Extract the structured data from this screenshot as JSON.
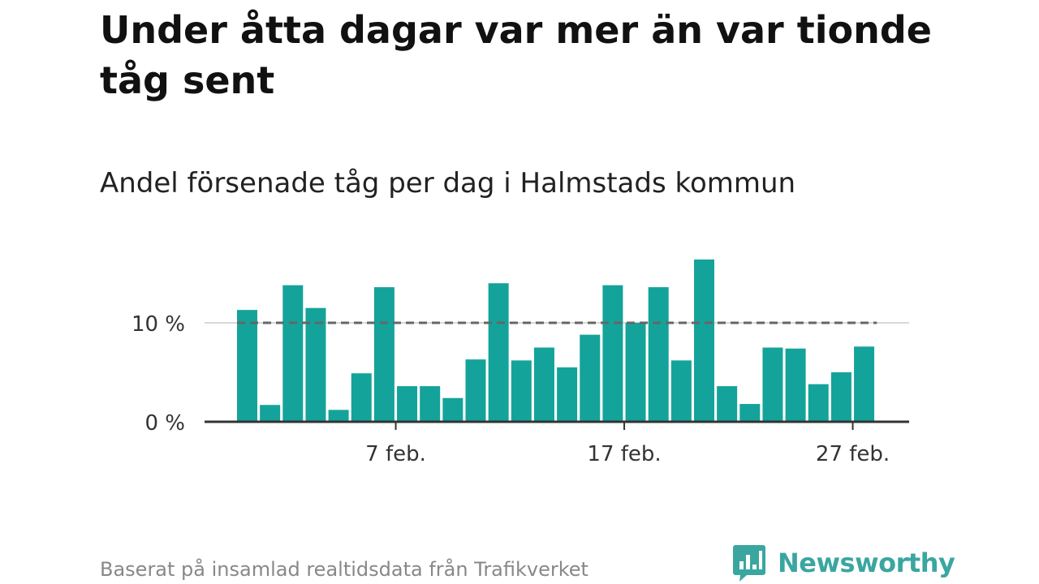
{
  "title": "Under åtta dagar var mer än var tionde tåg sent",
  "subtitle": "Andel försenade tåg per dag i Halmstads kommun",
  "source": "Baserat på insamlad realtidsdata från Trafikverket",
  "logo": {
    "text": "Newsworthy",
    "icon": "bar-chart-speech-icon"
  },
  "colors": {
    "bar": "#14a39a",
    "reference_line": "#666666",
    "axis": "#333333",
    "logo": "#3aa6a0"
  },
  "chart_data": {
    "type": "bar",
    "title": "Andel försenade tåg per dag i Halmstads kommun",
    "xlabel": "",
    "ylabel": "",
    "ylim": [
      0,
      17
    ],
    "yticks": [
      0,
      10
    ],
    "ytick_labels": [
      "0 %",
      "10 %"
    ],
    "xtick_labels": [
      "7 feb.",
      "17 feb.",
      "27 feb."
    ],
    "xtick_positions": [
      8,
      18,
      28
    ],
    "reference_line": 10,
    "grid": "horizontal at 10 %",
    "days": [
      1,
      2,
      3,
      4,
      5,
      6,
      7,
      8,
      9,
      10,
      11,
      12,
      13,
      14,
      15,
      16,
      17,
      18,
      19,
      20,
      21,
      22,
      23,
      24,
      25,
      26,
      27,
      28,
      29
    ],
    "values": [
      11.3,
      1.7,
      13.8,
      11.5,
      1.2,
      4.9,
      13.6,
      3.6,
      3.6,
      2.4,
      6.3,
      14.0,
      6.2,
      7.5,
      5.5,
      8.8,
      13.8,
      10.0,
      13.6,
      6.2,
      16.4,
      3.6,
      1.8,
      7.5,
      7.4,
      3.8,
      5.0,
      7.6,
      0
    ]
  }
}
